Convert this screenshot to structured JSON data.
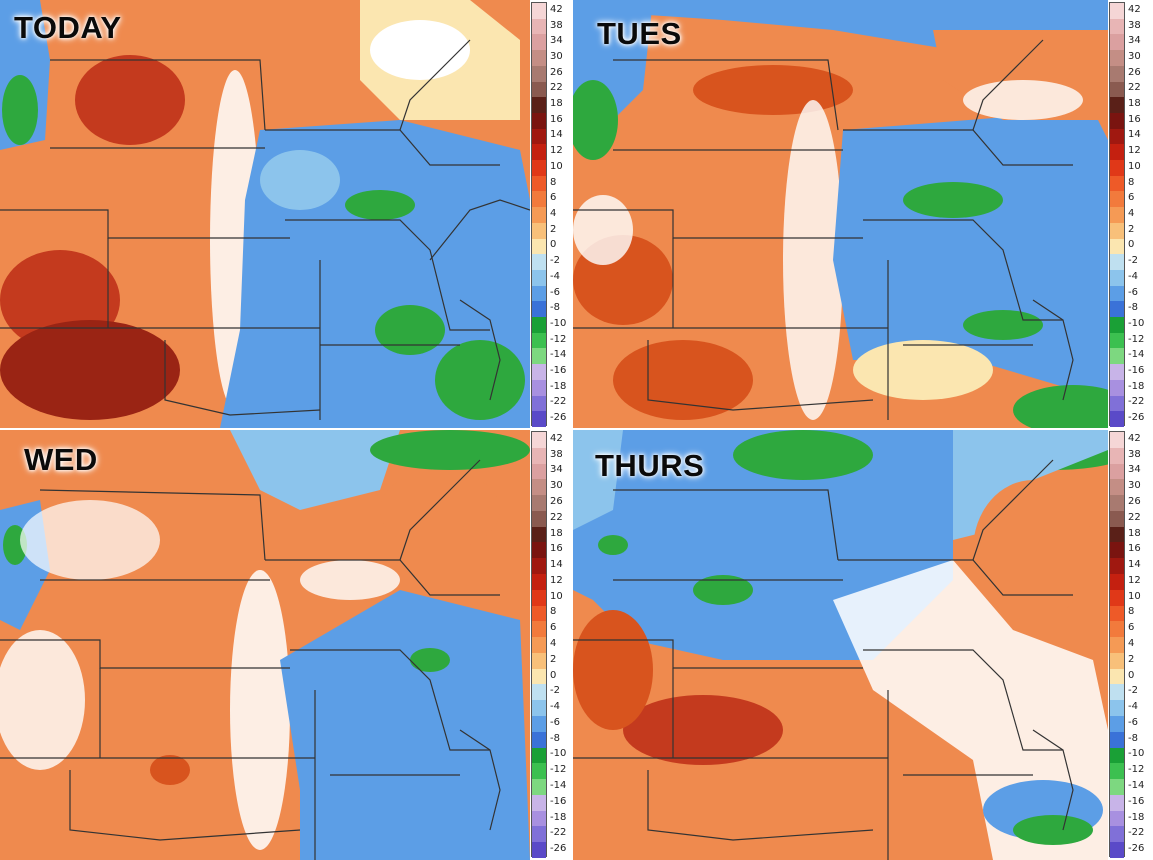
{
  "panels": [
    {
      "id": "today",
      "title": "TODAY"
    },
    {
      "id": "tues",
      "title": "TUES"
    },
    {
      "id": "wed",
      "title": "WED"
    },
    {
      "id": "thurs",
      "title": "THURS"
    }
  ],
  "colorbar": {
    "ticks": [
      "42",
      "38",
      "34",
      "30",
      "26",
      "22",
      "18",
      "16",
      "14",
      "12",
      "10",
      "8",
      "6",
      "4",
      "2",
      "0",
      "-2",
      "-4",
      "-6",
      "-8",
      "-10",
      "-12",
      "-14",
      "-16",
      "-18",
      "-22",
      "-26"
    ],
    "colors": [
      "#f5d6d6",
      "#e8b5b5",
      "#dba0a0",
      "#c48e85",
      "#a87a70",
      "#8a5a50",
      "#5a2018",
      "#7a1410",
      "#a01810",
      "#c42010",
      "#e03818",
      "#ee5a28",
      "#f27a3c",
      "#f59a55",
      "#f8c07a",
      "#fbe6b0",
      "#bfe0f0",
      "#8cc4ec",
      "#5c9ee6",
      "#3a72d8",
      "#1aa036",
      "#3cc050",
      "#7dd880",
      "#c8b4e8",
      "#a890e0",
      "#8070d8",
      "#5a4ac8"
    ]
  },
  "colors": {
    "warm": "#ef8a4e",
    "hot": "#c43a1e",
    "cool": "#5c9ee6",
    "wet": "#2ea83e"
  }
}
